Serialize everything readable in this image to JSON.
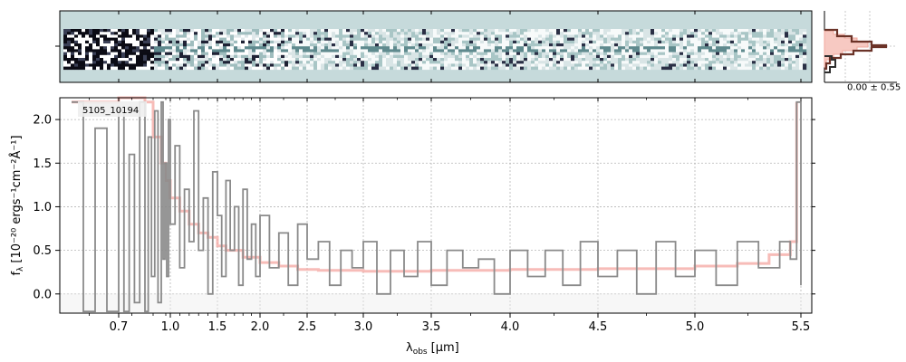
{
  "chart_data": {
    "type": "line",
    "object_id": "5105_10194",
    "xlabel_main": "λ",
    "xlabel_sub": "obs",
    "xlabel_unit": "[μm]",
    "ylabel_text": "f",
    "ylabel_sub": "λ",
    "ylabel_unit": "[10⁻²⁰ ergs⁻¹cm⁻²Å⁻¹]",
    "x_ticks": [
      {
        "value": 0.7,
        "label": "0.7"
      },
      {
        "value": 1.0,
        "label": "1.0"
      },
      {
        "value": 1.5,
        "label": "1.5"
      },
      {
        "value": 2.0,
        "label": "2.0"
      },
      {
        "value": 2.5,
        "label": "2.5"
      },
      {
        "value": 3.0,
        "label": "3.0"
      },
      {
        "value": 3.5,
        "label": "3.5"
      },
      {
        "value": 4.0,
        "label": "4.0"
      },
      {
        "value": 4.5,
        "label": "4.5"
      },
      {
        "value": 5.0,
        "label": "5.0"
      },
      {
        "value": 5.5,
        "label": "5.5"
      }
    ],
    "y_ticks": [
      0.0,
      0.5,
      1.0,
      1.5,
      2.0
    ],
    "y_tick_labels": [
      "0.0",
      "0.5",
      "1.0",
      "1.5",
      "2.0"
    ],
    "xlim": [
      0.6,
      5.53
    ],
    "ylim": [
      -0.22,
      2.25
    ],
    "grid": true,
    "series": [
      {
        "role": "data",
        "color": "#8a8a8a",
        "x": [
          0.62,
          0.64,
          0.66,
          0.68,
          0.7,
          0.72,
          0.74,
          0.76,
          0.78,
          0.8,
          0.82,
          0.84,
          0.86,
          0.88,
          0.9,
          0.92,
          0.94,
          0.96,
          0.98,
          1.0,
          1.05,
          1.1,
          1.15,
          1.2,
          1.25,
          1.3,
          1.35,
          1.4,
          1.45,
          1.5,
          1.55,
          1.6,
          1.65,
          1.7,
          1.75,
          1.8,
          1.85,
          1.9,
          1.95,
          2.0,
          2.1,
          2.2,
          2.3,
          2.4,
          2.5,
          2.6,
          2.7,
          2.8,
          2.9,
          3.0,
          3.1,
          3.2,
          3.3,
          3.4,
          3.5,
          3.6,
          3.7,
          3.8,
          3.9,
          4.0,
          4.1,
          4.2,
          4.3,
          4.4,
          4.5,
          4.6,
          4.7,
          4.8,
          4.9,
          5.0,
          5.1,
          5.2,
          5.3,
          5.4,
          5.45,
          5.48,
          5.5
        ],
        "y": [
          2.2,
          -0.2,
          1.9,
          -0.2,
          2.1,
          -0.2,
          1.6,
          -0.1,
          2.2,
          -0.2,
          1.8,
          0.2,
          2.1,
          -0.1,
          2.2,
          0.4,
          1.5,
          0.2,
          2.0,
          0.8,
          1.7,
          0.3,
          1.2,
          0.6,
          2.1,
          0.5,
          1.1,
          0.0,
          1.4,
          0.9,
          0.2,
          1.3,
          0.5,
          1.0,
          0.1,
          1.2,
          0.4,
          0.8,
          0.2,
          0.9,
          0.3,
          0.7,
          0.1,
          0.8,
          0.4,
          0.6,
          0.1,
          0.5,
          0.3,
          0.6,
          0.0,
          0.5,
          0.2,
          0.6,
          0.1,
          0.5,
          0.3,
          0.4,
          0.0,
          0.5,
          0.2,
          0.5,
          0.1,
          0.6,
          0.2,
          0.5,
          0.0,
          0.6,
          0.2,
          0.5,
          0.1,
          0.6,
          0.3,
          0.6,
          0.4,
          2.2,
          0.1
        ]
      },
      {
        "role": "model",
        "color": "#f4a6a0",
        "x": [
          0.62,
          0.7,
          0.8,
          0.85,
          0.9,
          0.95,
          1.0,
          1.1,
          1.2,
          1.3,
          1.4,
          1.5,
          1.6,
          1.8,
          2.0,
          2.2,
          2.4,
          2.6,
          3.0,
          3.5,
          4.0,
          4.5,
          5.0,
          5.2,
          5.35,
          5.45,
          5.48
        ],
        "y": [
          2.2,
          2.3,
          2.2,
          1.8,
          1.5,
          1.3,
          1.1,
          0.95,
          0.8,
          0.7,
          0.65,
          0.55,
          0.5,
          0.42,
          0.36,
          0.32,
          0.28,
          0.27,
          0.26,
          0.27,
          0.28,
          0.29,
          0.32,
          0.35,
          0.45,
          0.6,
          2.2
        ]
      }
    ],
    "inset_label": "0.00 ± 0.55"
  }
}
